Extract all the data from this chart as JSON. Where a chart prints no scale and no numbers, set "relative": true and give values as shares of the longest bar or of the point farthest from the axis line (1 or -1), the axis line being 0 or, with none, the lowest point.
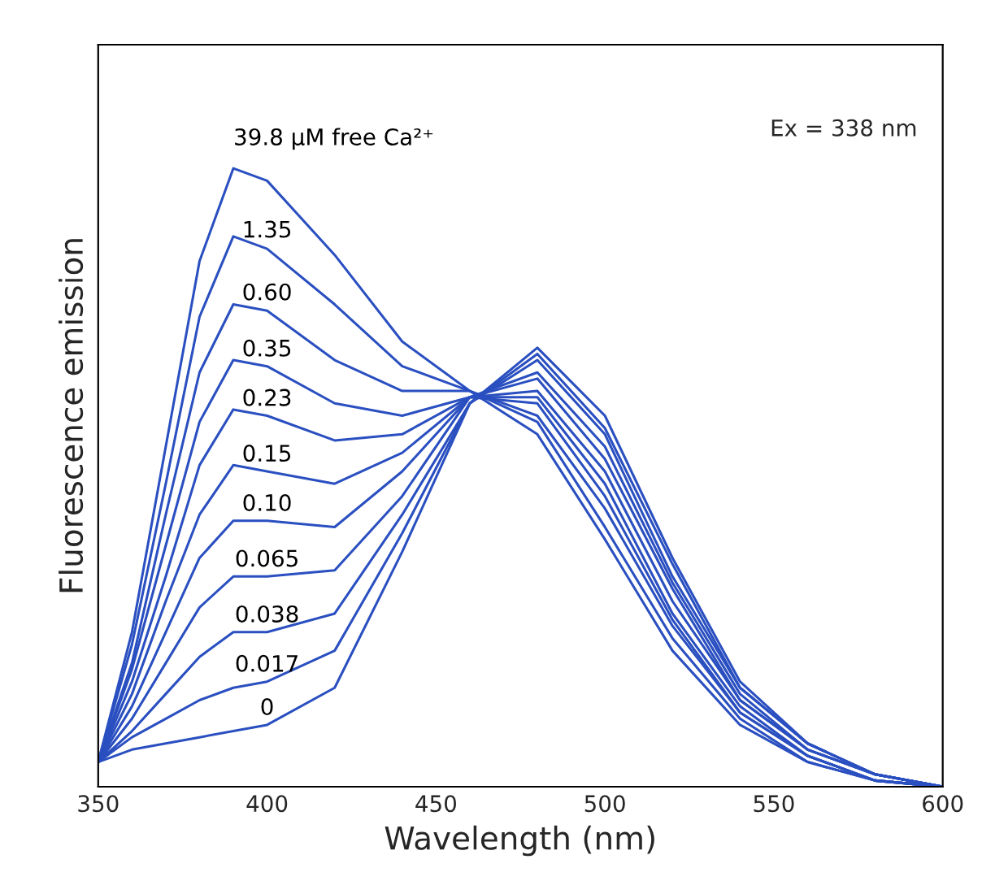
{
  "chart_data": {
    "type": "line",
    "relative": true,
    "xlabel": "Wavelength (nm)",
    "ylabel": "Fluorescence emission",
    "x": [
      350,
      360,
      370,
      380,
      390,
      400,
      420,
      440,
      460,
      480,
      500,
      520,
      540,
      560,
      580,
      600
    ],
    "xlim": [
      350,
      600
    ],
    "xticks": [
      350,
      400,
      450,
      500,
      550,
      600
    ],
    "grid": false,
    "legend": false,
    "marker": "none",
    "line_style": "solid",
    "annotations": [
      "Ex = 338 nm"
    ],
    "series": [
      {
        "name": "0",
        "color": "#2a4fc0",
        "values": [
          0.04,
          0.06,
          0.07,
          0.08,
          0.09,
          0.1,
          0.16,
          0.38,
          0.62,
          0.71,
          0.6,
          0.37,
          0.17,
          0.07,
          0.02,
          0
        ]
      },
      {
        "name": "0.017",
        "color": "#2a4fc0",
        "values": [
          0.04,
          0.08,
          0.11,
          0.14,
          0.16,
          0.17,
          0.22,
          0.41,
          0.62,
          0.7,
          0.58,
          0.36,
          0.16,
          0.07,
          0.02,
          0
        ]
      },
      {
        "name": "0.038",
        "color": "#2a4fc0",
        "values": [
          0.04,
          0.09,
          0.15,
          0.21,
          0.25,
          0.25,
          0.28,
          0.44,
          0.62,
          0.69,
          0.57,
          0.34,
          0.16,
          0.07,
          0.02,
          0
        ]
      },
      {
        "name": "0.065",
        "color": "#2a4fc0",
        "values": [
          0.04,
          0.11,
          0.2,
          0.29,
          0.34,
          0.34,
          0.35,
          0.47,
          0.63,
          0.67,
          0.55,
          0.33,
          0.15,
          0.06,
          0.02,
          0
        ]
      },
      {
        "name": "0.10",
        "color": "#2a4fc0",
        "values": [
          0.04,
          0.13,
          0.25,
          0.37,
          0.43,
          0.43,
          0.42,
          0.51,
          0.63,
          0.66,
          0.53,
          0.32,
          0.14,
          0.06,
          0.02,
          0
        ]
      },
      {
        "name": "0.15",
        "color": "#2a4fc0",
        "values": [
          0.04,
          0.15,
          0.3,
          0.44,
          0.52,
          0.51,
          0.49,
          0.54,
          0.63,
          0.64,
          0.51,
          0.3,
          0.14,
          0.06,
          0.02,
          0
        ]
      },
      {
        "name": "0.23",
        "color": "#2a4fc0",
        "values": [
          0.04,
          0.17,
          0.34,
          0.52,
          0.61,
          0.6,
          0.56,
          0.57,
          0.63,
          0.63,
          0.49,
          0.28,
          0.13,
          0.05,
          0.01,
          0
        ]
      },
      {
        "name": "0.35",
        "color": "#2a4fc0",
        "values": [
          0.04,
          0.19,
          0.39,
          0.59,
          0.69,
          0.68,
          0.62,
          0.6,
          0.63,
          0.62,
          0.47,
          0.27,
          0.12,
          0.05,
          0.01,
          0
        ]
      },
      {
        "name": "0.60",
        "color": "#2a4fc0",
        "values": [
          0.04,
          0.2,
          0.44,
          0.67,
          0.78,
          0.77,
          0.69,
          0.64,
          0.64,
          0.6,
          0.45,
          0.26,
          0.12,
          0.05,
          0.01,
          0
        ]
      },
      {
        "name": "1.35",
        "color": "#2a4fc0",
        "values": [
          0.04,
          0.23,
          0.49,
          0.76,
          0.89,
          0.87,
          0.78,
          0.68,
          0.64,
          0.59,
          0.42,
          0.24,
          0.11,
          0.04,
          0.01,
          0
        ]
      },
      {
        "name": "39.8 μM free Ca²⁺",
        "color": "#2a4fc0",
        "values": [
          0.04,
          0.25,
          0.55,
          0.85,
          1.0,
          0.98,
          0.86,
          0.72,
          0.64,
          0.57,
          0.4,
          0.22,
          0.1,
          0.04,
          0.01,
          0
        ]
      }
    ]
  }
}
